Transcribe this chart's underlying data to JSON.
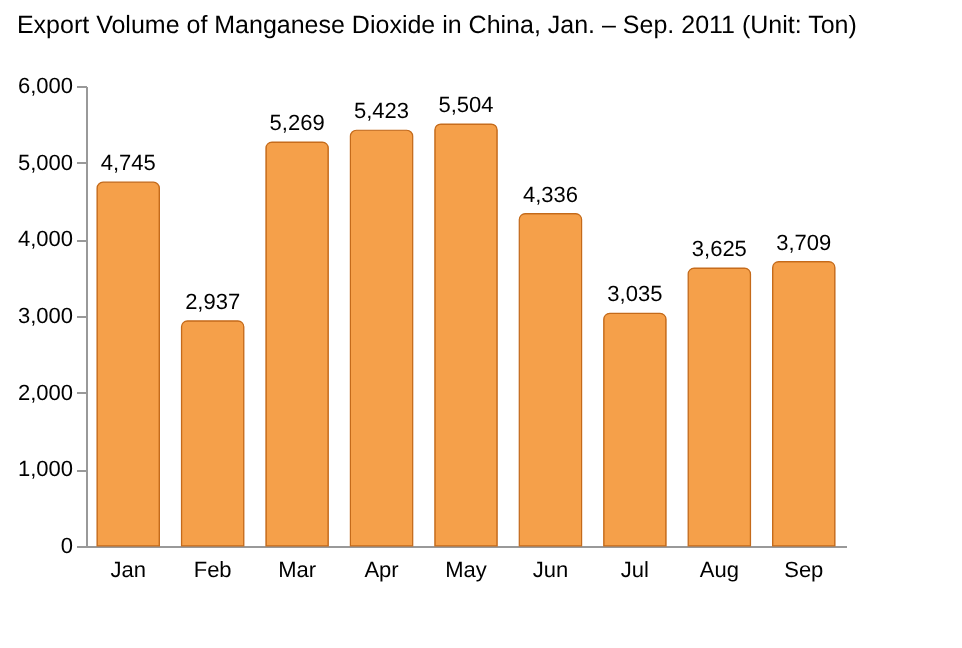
{
  "chart_data": {
    "type": "bar",
    "title": "Export Volume of Manganese Dioxide in China, Jan. – Sep. 2011 (Unit: Ton)",
    "categories": [
      "Jan",
      "Feb",
      "Mar",
      "Apr",
      "May",
      "Jun",
      "Jul",
      "Aug",
      "Sep"
    ],
    "values": [
      4745,
      2937,
      5269,
      5423,
      5504,
      4336,
      3035,
      3625,
      3709
    ],
    "value_labels": [
      "4,745",
      "2,937",
      "5,269",
      "5,423",
      "5,504",
      "4,336",
      "3,035",
      "3,625",
      "3,709"
    ],
    "color": "#f5a04a",
    "ylim": [
      0,
      6000
    ],
    "yticks": [
      {
        "value": 0,
        "label": "0"
      },
      {
        "value": 1000,
        "label": "1,000"
      },
      {
        "value": 2000,
        "label": "2,000"
      },
      {
        "value": 3000,
        "label": "3,000"
      },
      {
        "value": 4000,
        "label": "4,000"
      },
      {
        "value": 5000,
        "label": "5,000"
      },
      {
        "value": 6000,
        "label": "6,000"
      }
    ],
    "grid": false
  }
}
